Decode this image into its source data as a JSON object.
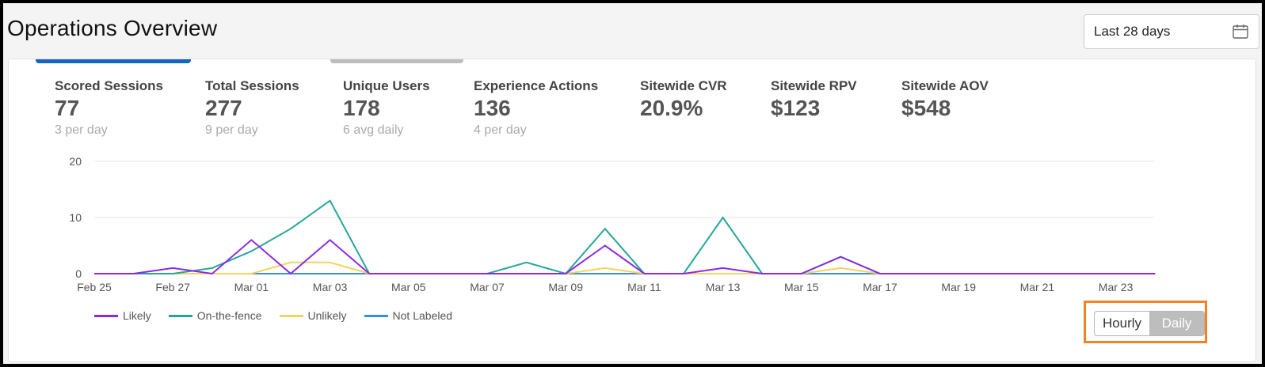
{
  "header": {
    "title": "Operations Overview",
    "date_range": "Last 28 days",
    "calendar_icon": "calendar-icon"
  },
  "metrics": [
    {
      "label": "Scored Sessions",
      "value": "77",
      "sub": "3 per day"
    },
    {
      "label": "Total Sessions",
      "value": "277",
      "sub": "9 per day"
    },
    {
      "label": "Unique Users",
      "value": "178",
      "sub": "6 avg daily"
    },
    {
      "label": "Experience Actions",
      "value": "136",
      "sub": "4 per day"
    },
    {
      "label": "Sitewide CVR",
      "value": "20.9%",
      "sub": ""
    },
    {
      "label": "Sitewide RPV",
      "value": "$123",
      "sub": ""
    },
    {
      "label": "Sitewide AOV",
      "value": "$548",
      "sub": ""
    }
  ],
  "granularity": {
    "options": [
      "Hourly",
      "Daily"
    ],
    "selected": "Daily"
  },
  "colors": {
    "likely": "#8a2be2",
    "on_the_fence": "#26a69a",
    "unlikely": "#f4d35e",
    "not_labeled": "#3a8fd9",
    "highlight": "#f58220",
    "active_tab": "#1565c0"
  },
  "chart_data": {
    "type": "line",
    "ylim": [
      0,
      20
    ],
    "yticks": [
      0,
      10,
      20
    ],
    "xticks": [
      "Feb 25",
      "Feb 27",
      "Mar 01",
      "Mar 03",
      "Mar 05",
      "Mar 07",
      "Mar 09",
      "Mar 11",
      "Mar 13",
      "Mar 15",
      "Mar 17",
      "Mar 19",
      "Mar 21",
      "Mar 23"
    ],
    "x_count": 28,
    "series": [
      {
        "name": "Likely",
        "color": "#8a2be2",
        "values": [
          0,
          0,
          1,
          0,
          6,
          0,
          6,
          0,
          0,
          0,
          0,
          0,
          0,
          5,
          0,
          0,
          1,
          0,
          0,
          3,
          0,
          0,
          0,
          0,
          0,
          0,
          0,
          0
        ]
      },
      {
        "name": "On-the-fence",
        "color": "#26a69a",
        "values": [
          0,
          0,
          0,
          1,
          4,
          8,
          13,
          0,
          0,
          0,
          0,
          2,
          0,
          8,
          0,
          0,
          10,
          0,
          0,
          3,
          0,
          0,
          0,
          0,
          0,
          0,
          0,
          0
        ]
      },
      {
        "name": "Unlikely",
        "color": "#f4d35e",
        "values": [
          0,
          0,
          0,
          0,
          0,
          2,
          2,
          0,
          0,
          0,
          0,
          0,
          0,
          1,
          0,
          0,
          0,
          0,
          0,
          1,
          0,
          0,
          0,
          0,
          0,
          0,
          0,
          0
        ]
      },
      {
        "name": "Not Labeled",
        "color": "#3a8fd9",
        "values": [
          0,
          0,
          0,
          0,
          0,
          0,
          0,
          0,
          0,
          0,
          0,
          0,
          0,
          0,
          0,
          0,
          0,
          0,
          0,
          0,
          0,
          0,
          0,
          0,
          0,
          0,
          0,
          0
        ]
      }
    ]
  }
}
